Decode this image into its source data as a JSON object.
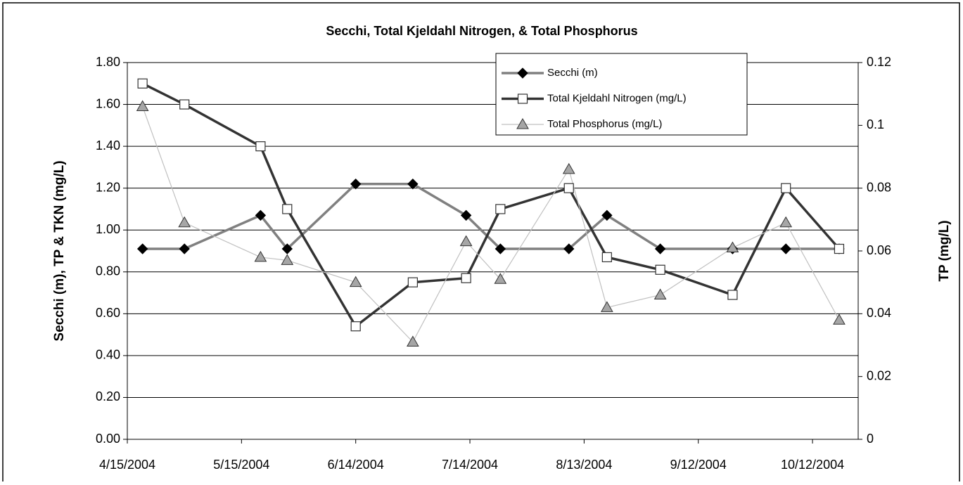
{
  "chart_data": {
    "type": "line",
    "title": "Secchi, Total Kjeldahl Nitrogen, & Total Phosphorus",
    "y_label": "Secchi (m), TP & TKN (mg/L)",
    "y2_label": "TP (mg/L)",
    "x": [
      "4/19/2004",
      "4/30/2004",
      "5/20/2004",
      "5/27/2004",
      "6/14/2004",
      "6/29/2004",
      "7/13/2004",
      "7/22/2004",
      "8/9/2004",
      "8/19/2004",
      "9/2/2004",
      "9/21/2004",
      "10/5/2004",
      "10/19/2004"
    ],
    "xlim": [
      "4/15/2004",
      "10/24/2004"
    ],
    "xticks": [
      "4/15/2004",
      "5/15/2004",
      "6/14/2004",
      "7/14/2004",
      "8/13/2004",
      "9/12/2004",
      "10/12/2004"
    ],
    "ylim": [
      0,
      1.8
    ],
    "yticks": [
      {
        "value": 0,
        "label": "0.00"
      },
      {
        "value": 0.2,
        "label": "0.20"
      },
      {
        "value": 0.4,
        "label": "0.40"
      },
      {
        "value": 0.6,
        "label": "0.60"
      },
      {
        "value": 0.8,
        "label": "0.80"
      },
      {
        "value": 1,
        "label": "1.00"
      },
      {
        "value": 1.2,
        "label": "1.20"
      },
      {
        "value": 1.4,
        "label": "1.40"
      },
      {
        "value": 1.6,
        "label": "1.60"
      },
      {
        "value": 1.8,
        "label": "1.80"
      }
    ],
    "y2lim": [
      0,
      0.12
    ],
    "y2ticks": [
      0,
      0.02,
      0.04,
      0.06,
      0.08,
      0.1,
      0.12
    ],
    "grid": true,
    "legend": "upper right",
    "series": [
      {
        "name": "Secchi (m)",
        "color": "#808080",
        "marker": "diamond",
        "marker_color": "#000000",
        "values": [
          0.91,
          0.91,
          1.07,
          0.91,
          1.22,
          1.22,
          1.07,
          0.91,
          0.91,
          1.07,
          0.91,
          0.91,
          0.91,
          0.91
        ]
      },
      {
        "name": "Total Kjeldahl Nitrogen (mg/L)",
        "color": "#333333",
        "marker": "square",
        "marker_color": "#ffffff",
        "values": [
          1.7,
          1.6,
          1.4,
          1.1,
          0.54,
          0.75,
          0.77,
          1.1,
          1.2,
          0.87,
          0.81,
          0.69,
          1.2,
          0.91
        ]
      },
      {
        "name": "Total Phosphorus (mg/L)",
        "color": "#c0c0c0",
        "marker": "triangle",
        "marker_color": "#a6a6a6",
        "axis": "y2",
        "values": [
          0.106,
          0.069,
          0.058,
          0.057,
          0.05,
          0.031,
          0.063,
          0.051,
          0.086,
          0.042,
          0.046,
          0.061,
          0.069,
          0.038
        ]
      }
    ]
  }
}
